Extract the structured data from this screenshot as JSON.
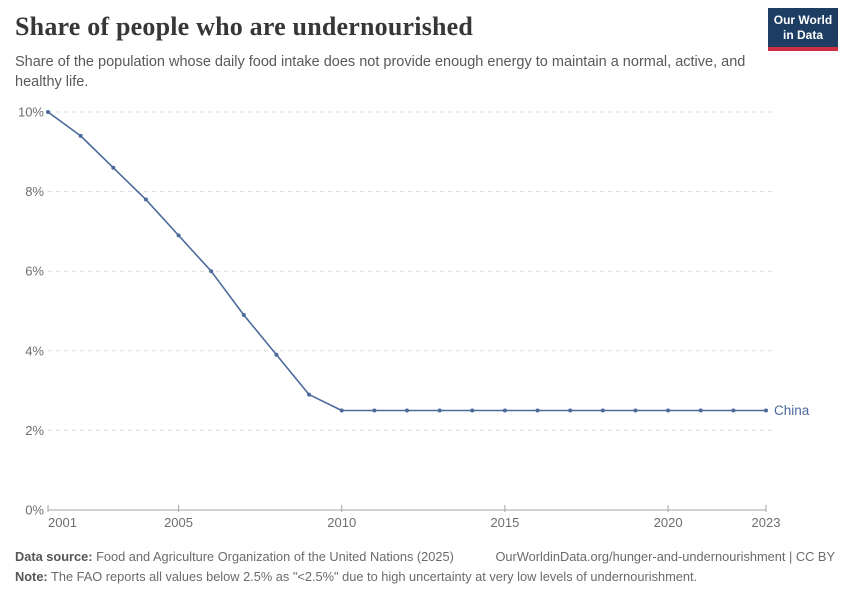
{
  "header": {
    "title": "Share of people who are undernourished",
    "subtitle": "Share of the population whose daily food intake does not provide enough energy to maintain a normal, active, and healthy life.",
    "logo": {
      "line1": "Our World",
      "line2": "in Data",
      "bg_color": "#1d3d63",
      "accent_color": "#cc2e43"
    }
  },
  "chart_data": {
    "type": "line",
    "title": "Share of people who are undernourished",
    "xlabel": "",
    "ylabel": "",
    "xlim": [
      2001,
      2023
    ],
    "ylim": [
      0,
      10
    ],
    "x_ticks": [
      2001,
      2005,
      2010,
      2015,
      2020,
      2023
    ],
    "y_ticks": [
      0,
      2,
      4,
      6,
      8,
      10
    ],
    "y_tick_suffix": "%",
    "grid": "horizontal-dashed",
    "legend_position": "end-of-line",
    "series": [
      {
        "name": "China",
        "color": "#4c6a9c",
        "x": [
          2001,
          2002,
          2003,
          2004,
          2005,
          2006,
          2007,
          2008,
          2009,
          2010,
          2011,
          2012,
          2013,
          2014,
          2015,
          2016,
          2017,
          2018,
          2019,
          2020,
          2021,
          2022,
          2023
        ],
        "values": [
          10,
          9.4,
          8.6,
          7.8,
          6.9,
          6.0,
          4.9,
          3.9,
          2.9,
          2.5,
          2.5,
          2.5,
          2.5,
          2.5,
          2.5,
          2.5,
          2.5,
          2.5,
          2.5,
          2.5,
          2.5,
          2.5,
          2.5
        ]
      }
    ]
  },
  "footer": {
    "datasource_label": "Data source:",
    "datasource_text": " Food and Agriculture Organization of the United Nations (2025)",
    "link": "OurWorldinData.org/hunger-and-undernourishment | CC BY",
    "note_label": "Note:",
    "note_text": " The FAO reports all values below 2.5% as \"<2.5%\" due to high uncertainty at very low levels of undernourishment."
  },
  "colors": {
    "line": "#4c6a9c",
    "grid": "#dcdcdc",
    "axis": "#a3a3a3",
    "tick_label": "#6e6e6e"
  }
}
